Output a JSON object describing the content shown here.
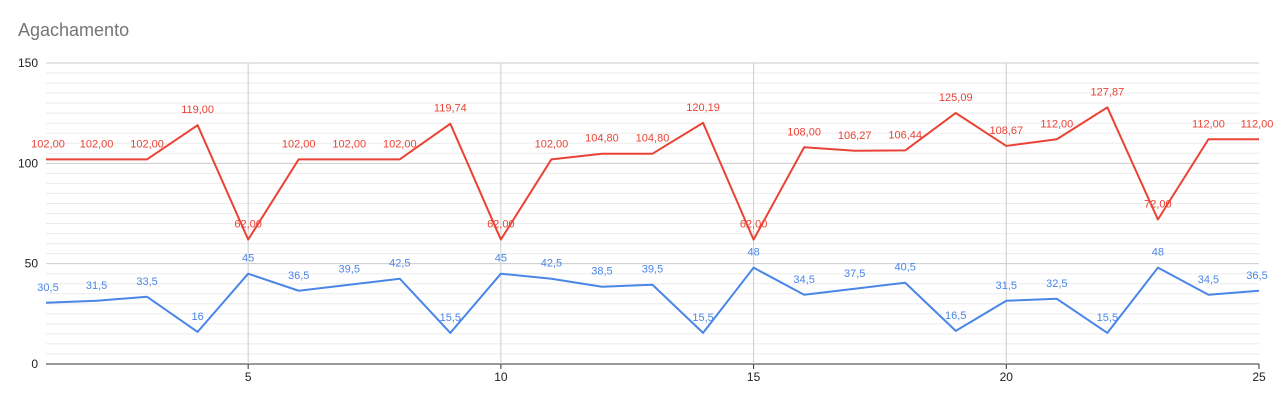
{
  "chart_data": {
    "type": "line",
    "title": "Agachamento",
    "xlabel": "",
    "ylabel": "",
    "x": [
      1,
      2,
      3,
      4,
      5,
      6,
      7,
      8,
      9,
      10,
      11,
      12,
      13,
      14,
      15,
      16,
      17,
      18,
      19,
      20,
      21,
      22,
      23,
      24,
      25
    ],
    "xlim": [
      1,
      25
    ],
    "ylim": [
      0,
      150
    ],
    "x_ticks": [
      5,
      10,
      15,
      20,
      25
    ],
    "y_ticks": [
      0,
      50,
      100,
      150
    ],
    "grid": true,
    "legend": "none",
    "series": [
      {
        "color": "#ea4335",
        "values": [
          102,
          102,
          102,
          119,
          62,
          102,
          102,
          102,
          119.74,
          62,
          102,
          104.8,
          104.8,
          120.19,
          62,
          108,
          106.27,
          106.44,
          125.09,
          108.67,
          112,
          127.87,
          72,
          112,
          112
        ],
        "labels": [
          "102,00",
          "102,00",
          "102,00",
          "119,00",
          "62,00",
          "102,00",
          "102,00",
          "102,00",
          "119,74",
          "62,00",
          "102,00",
          "104,80",
          "104,80",
          "120,19",
          "62,00",
          "108,00",
          "106,27",
          "106,44",
          "125,09",
          "108,67",
          "112,00",
          "127,87",
          "72,00",
          "112,00",
          "112,00"
        ]
      },
      {
        "color": "#4a86e8",
        "values": [
          30.5,
          31.5,
          33.5,
          16,
          45,
          36.5,
          39.5,
          42.5,
          15.5,
          45,
          42.5,
          38.5,
          39.5,
          15.5,
          48,
          34.5,
          37.5,
          40.5,
          16.5,
          31.5,
          32.5,
          15.5,
          48,
          34.5,
          36.5
        ],
        "labels": [
          "30,5",
          "31,5",
          "33,5",
          "16",
          "45",
          "36,5",
          "39,5",
          "42,5",
          "15,5",
          "45",
          "42,5",
          "38,5",
          "39,5",
          "15,5",
          "48",
          "34,5",
          "37,5",
          "40,5",
          "16,5",
          "31,5",
          "32,5",
          "15,5",
          "48",
          "34,5",
          "36,5"
        ]
      }
    ]
  }
}
